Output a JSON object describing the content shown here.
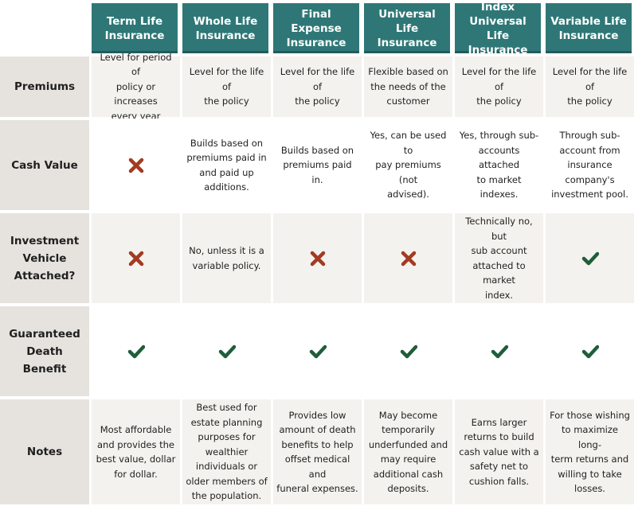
{
  "columns": [
    "Term Life\nInsurance",
    "Whole Life\nInsurance",
    "Final Expense\nInsurance",
    "Universal Life\nInsurance",
    "Index Universal\nLife Insurance",
    "Variable Life\nInsurance"
  ],
  "rows": [
    {
      "label": "Premiums",
      "cells": [
        {
          "type": "text",
          "text": "Level for period of\npolicy or increases\nevery year"
        },
        {
          "type": "text",
          "text": "Level for the life of\nthe policy"
        },
        {
          "type": "text",
          "text": "Level for the life of\nthe policy"
        },
        {
          "type": "text",
          "text": "Flexible based on\nthe needs of the\ncustomer"
        },
        {
          "type": "text",
          "text": "Level for the life of\nthe policy"
        },
        {
          "type": "text",
          "text": "Level for the life of\nthe policy"
        }
      ]
    },
    {
      "label": "Cash Value",
      "cells": [
        {
          "type": "icon",
          "icon": "x-icon"
        },
        {
          "type": "text",
          "text": "Builds based on\npremiums paid in\nand paid up\nadditions."
        },
        {
          "type": "text",
          "text": "Builds based on\npremiums paid in."
        },
        {
          "type": "text",
          "text": "Yes, can be used to\npay premiums (not\nadvised)."
        },
        {
          "type": "text",
          "text": "Yes, through sub-\naccounts attached\nto market indexes."
        },
        {
          "type": "text",
          "text": "Through sub-\naccount from\ninsurance\ncompany's\ninvestment pool."
        }
      ]
    },
    {
      "label": "Investment\nVehicle\nAttached?",
      "cells": [
        {
          "type": "icon",
          "icon": "x-icon"
        },
        {
          "type": "text",
          "text": "No, unless it is a\nvariable policy."
        },
        {
          "type": "icon",
          "icon": "x-icon"
        },
        {
          "type": "icon",
          "icon": "x-icon"
        },
        {
          "type": "text",
          "text": "Technically no, but\nsub account\nattached to market\nindex."
        },
        {
          "type": "icon",
          "icon": "check-icon"
        }
      ]
    },
    {
      "label": "Guaranteed\nDeath Benefit",
      "cells": [
        {
          "type": "icon",
          "icon": "check-icon"
        },
        {
          "type": "icon",
          "icon": "check-icon"
        },
        {
          "type": "icon",
          "icon": "check-icon"
        },
        {
          "type": "icon",
          "icon": "check-icon"
        },
        {
          "type": "icon",
          "icon": "check-icon"
        },
        {
          "type": "icon",
          "icon": "check-icon"
        }
      ]
    },
    {
      "label": "Notes",
      "cells": [
        {
          "type": "text",
          "text": "Most affordable\nand provides the\nbest value, dollar\nfor dollar."
        },
        {
          "type": "text",
          "text": "Best used for\nestate planning\npurposes for\nwealthier\nindividuals or\nolder members of\nthe population."
        },
        {
          "type": "text",
          "text": "Provides low\namount of death\nbenefits to help\noffset medical and\nfuneral expenses."
        },
        {
          "type": "text",
          "text": "May become\ntemporarily\nunderfunded and\nmay require\nadditional cash\ndeposits."
        },
        {
          "type": "text",
          "text": "Earns larger\nreturns to build\ncash value with a\nsafety net to\ncushion falls."
        },
        {
          "type": "text",
          "text": "For those wishing\nto maximize long-\nterm returns and\nwilling to take\nlosses."
        }
      ]
    }
  ],
  "colors": {
    "header_bg": "#2f7777",
    "x_icon": "#a33a22",
    "check_icon": "#1e5e3a"
  }
}
